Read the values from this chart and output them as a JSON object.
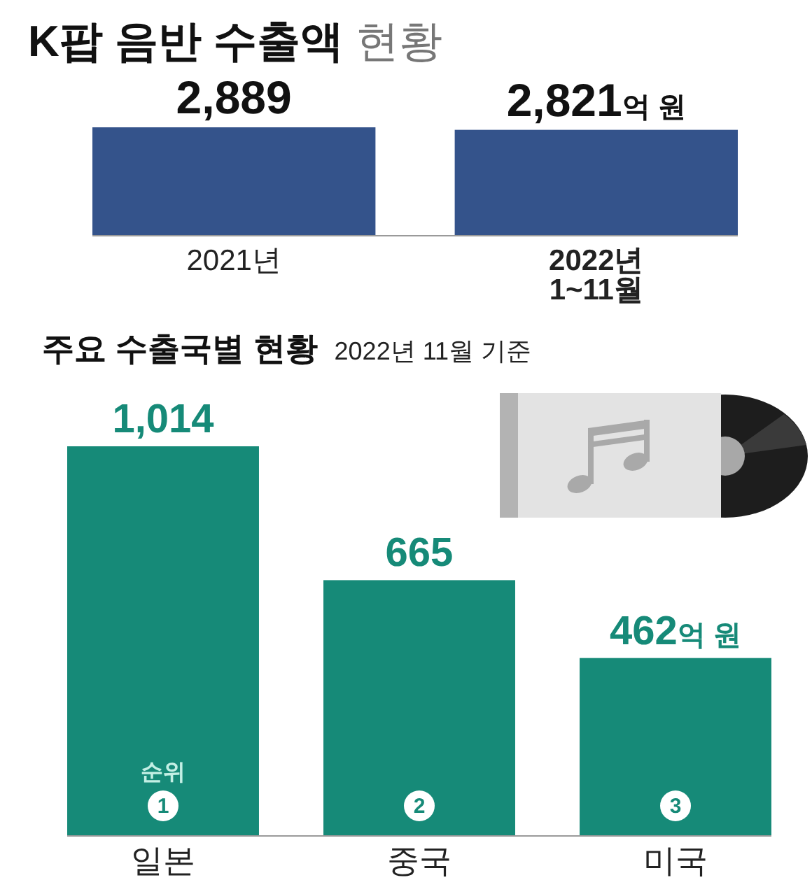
{
  "chart_data": [
    {
      "type": "bar",
      "title": "K팝 음반 수출액 현황",
      "categories": [
        "2021년",
        "2022년\n1~11월"
      ],
      "values": [
        2889,
        2821
      ],
      "color": "#34538b",
      "value_labels": [
        "2,889",
        "2,821억 원"
      ]
    },
    {
      "type": "bar",
      "title": "주요 수출국별 현황",
      "subtitle": "2022년 11월 기준",
      "categories": [
        "일본",
        "중국",
        "미국"
      ],
      "values": [
        1014,
        665,
        462
      ],
      "color": "#168a78",
      "value_labels": [
        "1,014",
        "665",
        "462억 원"
      ],
      "annotations": [
        "순위",
        "1",
        "2",
        "3"
      ]
    }
  ]
}
